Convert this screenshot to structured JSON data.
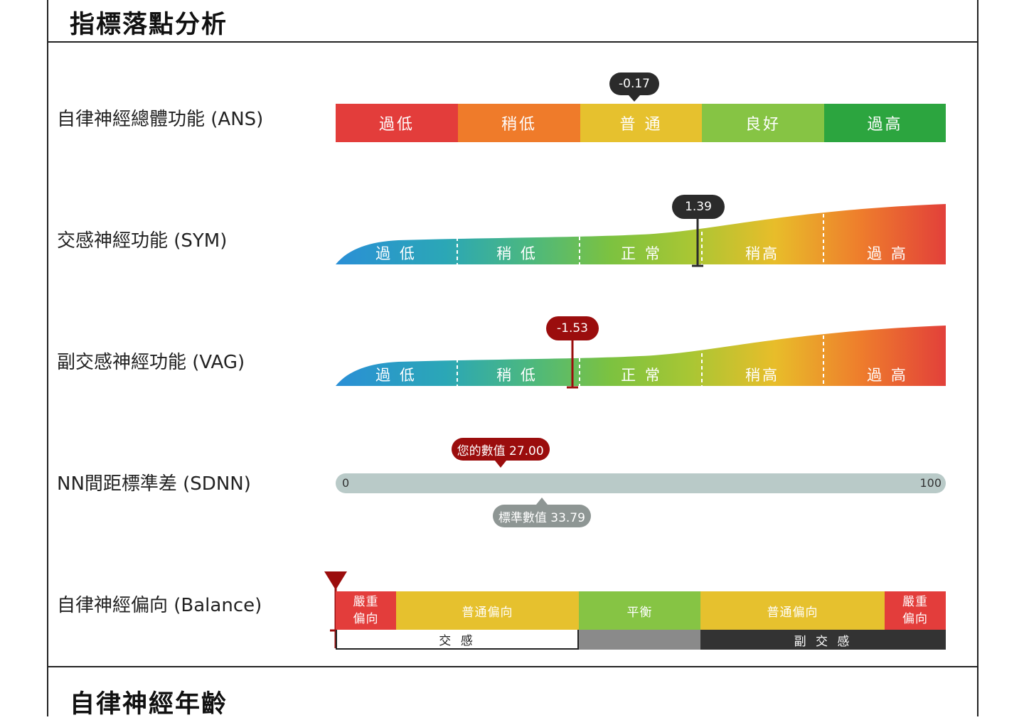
{
  "section1": {
    "title": "指標落點分析"
  },
  "section2": {
    "title": "自律神經年齡"
  },
  "ans": {
    "label": "自律神經總體功能 (ANS)",
    "value_text": "-0.17",
    "value": -0.17,
    "segments": [
      {
        "text": "過低",
        "color": "#e33d3b"
      },
      {
        "text": "稍低",
        "color": "#ef7b2a"
      },
      {
        "text": "普 通",
        "color": "#e6c12e"
      },
      {
        "text": "良好",
        "color": "#86c444"
      },
      {
        "text": "過高",
        "color": "#2ca53f"
      }
    ]
  },
  "sym": {
    "label": "交感神經功能 (SYM)",
    "value_text": "1.39",
    "value": 1.39,
    "segments": [
      "過 低",
      "稍 低",
      "正 常",
      "稍高",
      "過 高"
    ]
  },
  "vag": {
    "label": "副交感神經功能 (VAG)",
    "value_text": "-1.53",
    "value": -1.53,
    "segments": [
      "過 低",
      "稍 低",
      "正 常",
      "稍高",
      "過 高"
    ]
  },
  "sdnn": {
    "label": "NN間距標準差 (SDNN)",
    "min_text": "0",
    "max_text": "100",
    "min": 0,
    "max": 100,
    "your_value": 27.0,
    "your_text": "您的數值 27.00",
    "standard_value": 33.79,
    "standard_text": "標準數值 33.79"
  },
  "balance": {
    "label": "自律神經偏向 (Balance)",
    "segments": [
      {
        "line1": "嚴重",
        "line2": "偏向",
        "color": "#e33d3b"
      },
      {
        "line1": "普通偏向",
        "line2": "",
        "color": "#e6c12e"
      },
      {
        "line1": "平衡",
        "line2": "",
        "color": "#86c444"
      },
      {
        "line1": "普通偏向",
        "line2": "",
        "color": "#e6c12e"
      },
      {
        "line1": "嚴重",
        "line2": "偏向",
        "color": "#e33d3b"
      }
    ],
    "bottom": [
      {
        "text": "交 感",
        "color": "#ffffff",
        "fg": "#222222"
      },
      {
        "text": "",
        "color": "#8a8a8a",
        "fg": "#ffffff"
      },
      {
        "text": "副 交 感",
        "color": "#333333",
        "fg": "#ffffff"
      }
    ],
    "marker_position": 0.0
  },
  "colors": {
    "marker_red": "#9b0d0d",
    "marker_dark": "#2b2b2b"
  }
}
